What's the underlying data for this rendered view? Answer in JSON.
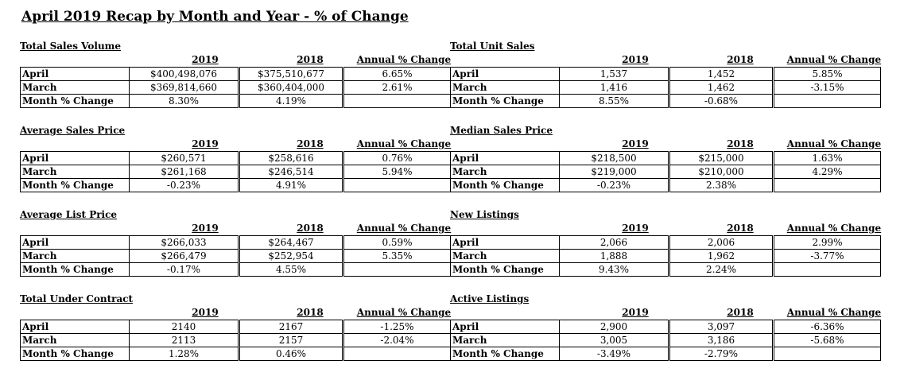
{
  "title": "April 2019 Recap by Month and Year - % of Change",
  "headers": {
    "y2019": "2019",
    "y2018": "2018",
    "annual": "Annual % Change"
  },
  "row_labels": {
    "april": "April",
    "march": "March",
    "month": "Month % Change"
  },
  "sections": [
    {
      "title": "Total Sales Volume",
      "april": [
        "$400,498,076",
        "$375,510,677",
        "6.65%"
      ],
      "march": [
        "$369,814,660",
        "$360,404,000",
        "2.61%"
      ],
      "month": [
        "8.30%",
        "4.19%",
        ""
      ]
    },
    {
      "title": "Total Unit Sales",
      "april": [
        "1,537",
        "1,452",
        "5.85%"
      ],
      "march": [
        "1,416",
        "1,462",
        "-3.15%"
      ],
      "month": [
        "8.55%",
        "-0.68%",
        ""
      ]
    },
    {
      "title": "Average Sales Price",
      "april": [
        "$260,571",
        "$258,616",
        "0.76%"
      ],
      "march": [
        "$261,168",
        "$246,514",
        "5.94%"
      ],
      "month": [
        "-0.23%",
        "4.91%",
        ""
      ]
    },
    {
      "title": "Median Sales Price",
      "april": [
        "$218,500",
        "$215,000",
        "1.63%"
      ],
      "march": [
        "$219,000",
        "$210,000",
        "4.29%"
      ],
      "month": [
        "-0.23%",
        "2.38%",
        ""
      ]
    },
    {
      "title": "Average List Price",
      "april": [
        "$266,033",
        "$264,467",
        "0.59%"
      ],
      "march": [
        "$266,479",
        "$252,954",
        "5.35%"
      ],
      "month": [
        "-0.17%",
        "4.55%",
        ""
      ]
    },
    {
      "title": "New Listings",
      "april": [
        "2,066",
        "2,006",
        "2.99%"
      ],
      "march": [
        "1,888",
        "1,962",
        "-3.77%"
      ],
      "month": [
        "9.43%",
        "2.24%",
        ""
      ]
    },
    {
      "title": "Total Under Contract",
      "april": [
        "2140",
        "2167",
        "-1.25%"
      ],
      "march": [
        "2113",
        "2157",
        "-2.04%"
      ],
      "month": [
        "1.28%",
        "0.46%",
        ""
      ]
    },
    {
      "title": "Active Listings",
      "april": [
        "2,900",
        "3,097",
        "-6.36%"
      ],
      "march": [
        "3,005",
        "3,186",
        "-5.68%"
      ],
      "month": [
        "-3.49%",
        "-2.79%",
        ""
      ]
    }
  ]
}
